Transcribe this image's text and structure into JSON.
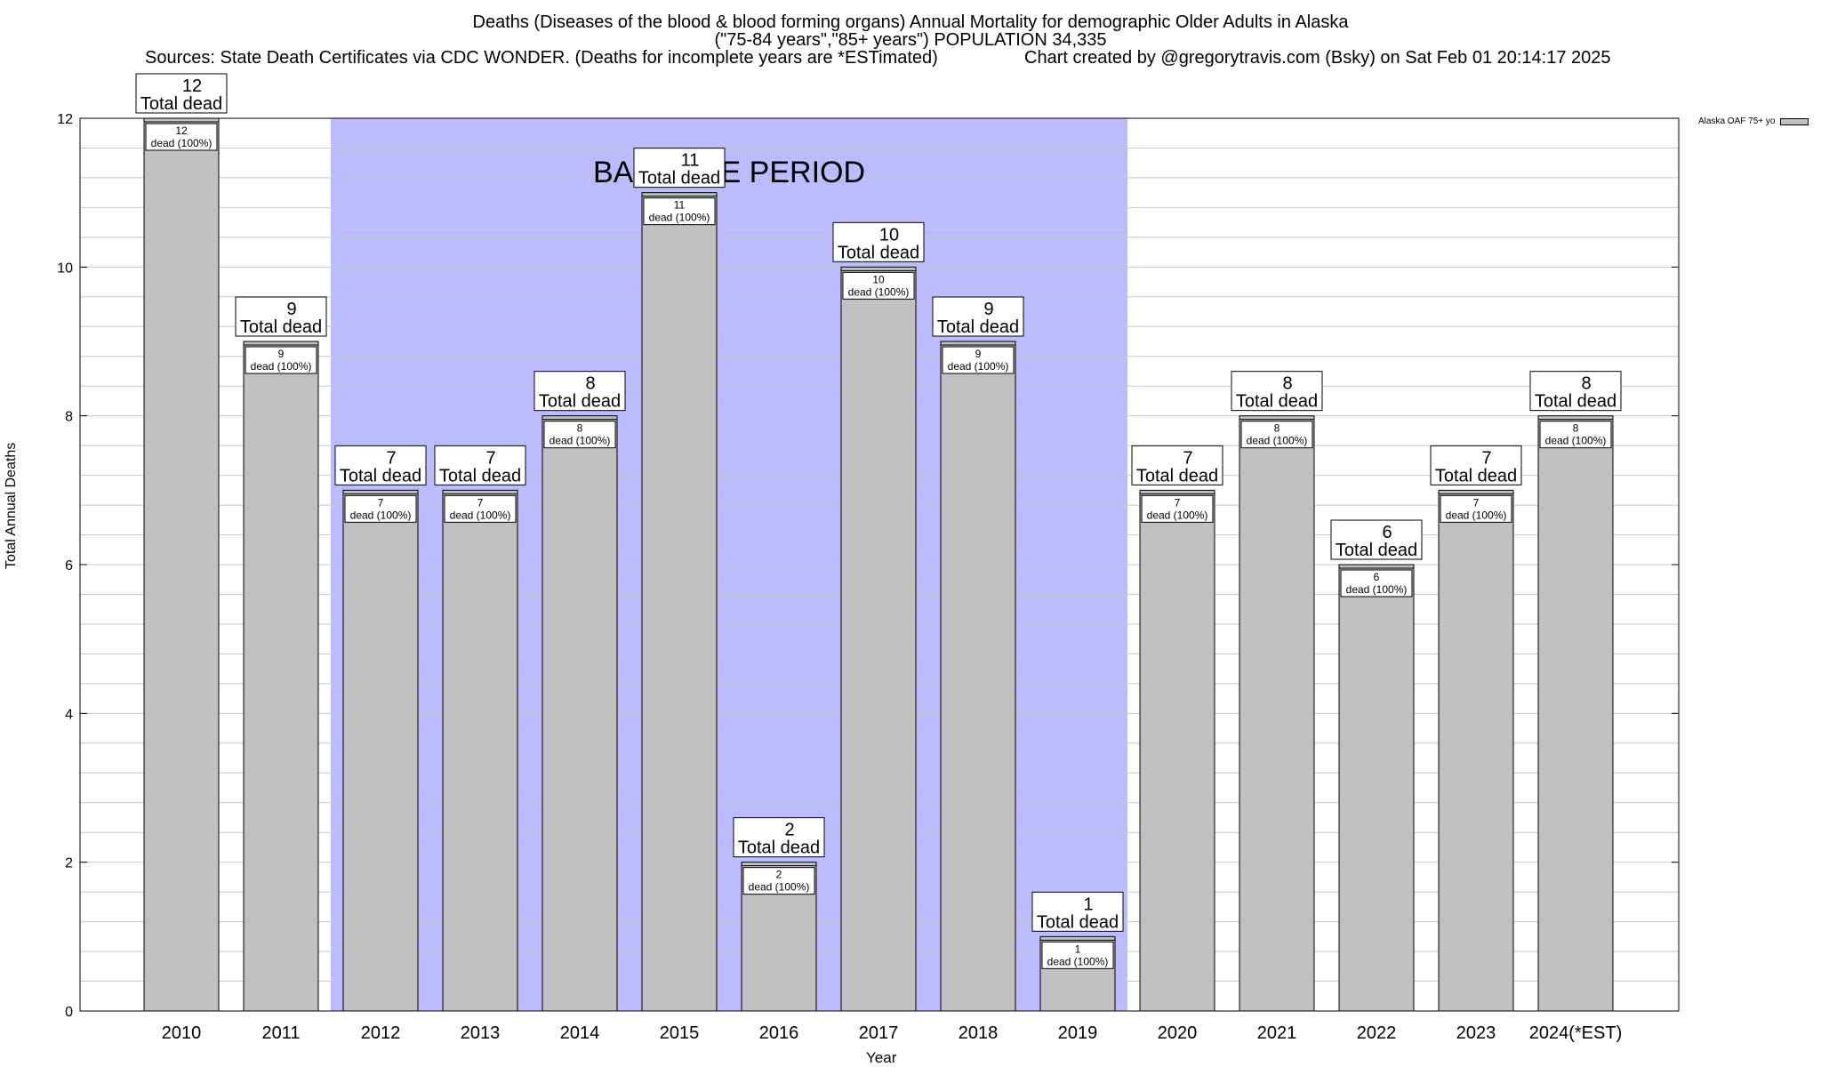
{
  "chart_data": {
    "type": "bar",
    "title": "Deaths (Diseases of the blood & blood forming organs) Annual Mortality for demographic Older Adults in Alaska",
    "subtitle": "(\"75-84 years\",\"85+ years\") POPULATION 34,335",
    "sources": "Sources: State Death Certificates via CDC WONDER. (Deaths for incomplete years are *ESTimated)",
    "credit": "Chart created by @gregorytravis.com (Bsky) on Sat Feb 01 20:14:17 2025",
    "xlabel": "Year",
    "ylabel": "Total Annual Deaths",
    "ylim": [
      0,
      12
    ],
    "yticks": [
      0,
      2,
      4,
      6,
      8,
      10,
      12
    ],
    "categories": [
      "2010",
      "2011",
      "2012",
      "2013",
      "2014",
      "2015",
      "2016",
      "2017",
      "2018",
      "2019",
      "2020",
      "2021",
      "2022",
      "2023",
      "2024(*EST)"
    ],
    "series": [
      {
        "name": "Alaska OAF 75+ yo",
        "values": [
          12,
          9,
          7,
          7,
          8,
          11,
          2,
          10,
          9,
          1,
          7,
          8,
          6,
          7,
          8
        ]
      }
    ],
    "label_total_suffix": "Total dead",
    "label_inner_suffix": "dead (100%)",
    "baseline_period": {
      "label": "BASELINE PERIOD",
      "from": "2012",
      "to": "2019"
    },
    "grid": true,
    "legend_position": "top-right",
    "colors": {
      "bar": "#c0c0c0",
      "baseline": "#bbbbff",
      "grid": "#c8c8c8"
    }
  }
}
